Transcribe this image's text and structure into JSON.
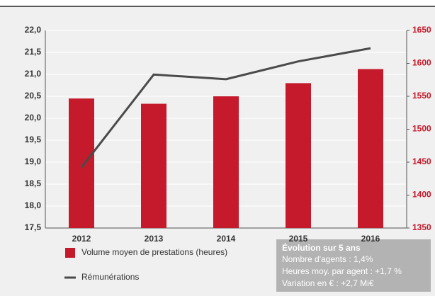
{
  "chart_data": {
    "type": "bar",
    "categories": [
      "2012",
      "2013",
      "2014",
      "2015",
      "2016"
    ],
    "series": [
      {
        "name": "Volume moyen de prestations (heures)",
        "type": "bar",
        "color": "#c41a2b",
        "values": [
          20.45,
          20.33,
          20.5,
          20.8,
          21.12
        ]
      },
      {
        "name": "Rémunérations",
        "type": "line",
        "color": "#4a4a4a",
        "axis": "y2",
        "values": [
          1442,
          1583,
          1576,
          1603,
          1623
        ]
      }
    ],
    "ylim": [
      17.5,
      22.0
    ],
    "yticks": [
      {
        "value": 17.5,
        "label": "17,5"
      },
      {
        "value": 18.0,
        "label": "18,0"
      },
      {
        "value": 18.5,
        "label": "18,5"
      },
      {
        "value": 19.0,
        "label": "19,0"
      },
      {
        "value": 19.5,
        "label": "19,5"
      },
      {
        "value": 20.0,
        "label": "20,0"
      },
      {
        "value": 20.5,
        "label": "20,5"
      },
      {
        "value": 21.0,
        "label": "21,0"
      },
      {
        "value": 21.5,
        "label": "21,5"
      },
      {
        "value": 22.0,
        "label": "22,0"
      }
    ],
    "y2lim": [
      1350,
      1650
    ],
    "y2ticks": [
      1350,
      1400,
      1450,
      1500,
      1550,
      1600,
      1650
    ],
    "y2color": "#c41a2b",
    "grid": true,
    "annotation": {
      "title": "Évolution sur 5 ans",
      "lines": [
        "Nombre d'agents : 1,4%",
        "Heures moy. par agent : +1,7 %",
        "Variation en € : +2,7 Mi€"
      ]
    }
  }
}
